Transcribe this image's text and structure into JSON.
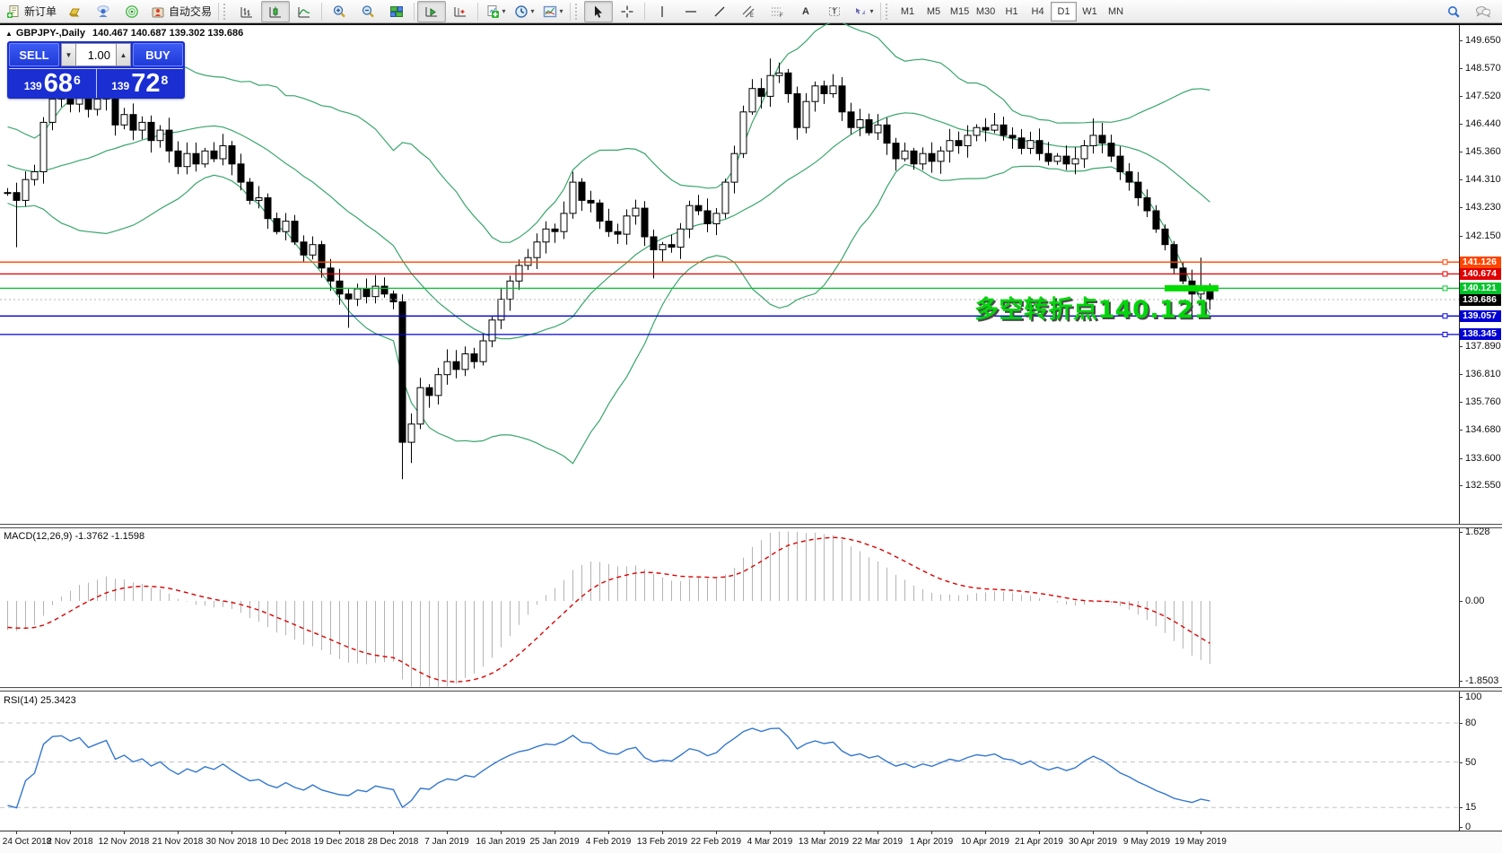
{
  "toolbar": {
    "new_order_label": "新订单",
    "auto_trading_label": "自动交易",
    "caret_glyph": "▾",
    "timeframes": [
      "M1",
      "M5",
      "M15",
      "M30",
      "H1",
      "H4",
      "D1",
      "W1",
      "MN"
    ],
    "active_timeframe": "D1",
    "text_tool_label": "A",
    "label_tool_label": "T"
  },
  "chart_header": {
    "expand_glyph": "▲",
    "symbol_title": "GBPJPY-,Daily",
    "ohlc_text": "140.467 140.687 139.302 139.686"
  },
  "trade_panel": {
    "sell_label": "SELL",
    "buy_label": "BUY",
    "volume": "1.00",
    "spinner_down_glyph": "▼",
    "spinner_up_glyph": "▲",
    "sell_price": {
      "prefix": "139",
      "big": "68",
      "sup": "6"
    },
    "buy_price": {
      "prefix": "139",
      "big": "72",
      "sup": "8"
    }
  },
  "annotation": {
    "text": "多空转折点140.121",
    "color": "#00d60a"
  },
  "indicator_labels": {
    "macd": "MACD(12,26,9) -1.3762 -1.1598",
    "rsi": "RSI(14) 25.3423"
  },
  "chart_data": {
    "type": "candlestick",
    "symbol": "GBPJPY-",
    "timeframe": "Daily",
    "title_ohlc": {
      "open": 140.467,
      "high": 140.687,
      "low": 139.302,
      "close": 139.686
    },
    "price_axis_ticks": [
      149.65,
      148.57,
      147.52,
      146.44,
      145.36,
      144.31,
      143.23,
      142.15,
      137.89,
      136.81,
      135.76,
      134.68,
      133.6,
      132.55
    ],
    "x_tick_labels": [
      "24 Oct 2018",
      "2 Nov 2018",
      "12 Nov 2018",
      "21 Nov 2018",
      "30 Nov 2018",
      "10 Dec 2018",
      "19 Dec 2018",
      "28 Dec 2018",
      "7 Jan 2019",
      "16 Jan 2019",
      "25 Jan 2019",
      "4 Feb 2019",
      "13 Feb 2019",
      "22 Feb 2019",
      "4 Mar 2019",
      "13 Mar 2019",
      "22 Mar 2019",
      "1 Apr 2019",
      "10 Apr 2019",
      "21 Apr 2019",
      "30 Apr 2019",
      "9 May 2019",
      "19 May 2019"
    ],
    "closes": [
      143.8,
      143.5,
      144.3,
      144.6,
      146.5,
      147.4,
      147.5,
      147.2,
      147.6,
      147.0,
      147.4,
      147.8,
      146.4,
      146.8,
      146.2,
      146.5,
      145.8,
      146.2,
      145.4,
      144.8,
      145.3,
      144.9,
      145.4,
      145.1,
      145.6,
      144.9,
      144.2,
      143.5,
      143.6,
      142.8,
      142.3,
      142.7,
      141.9,
      141.4,
      141.8,
      140.9,
      140.4,
      139.9,
      139.7,
      140.1,
      139.8,
      140.2,
      139.9,
      139.6,
      134.2,
      134.9,
      136.3,
      136.0,
      136.8,
      137.3,
      137.0,
      137.6,
      137.3,
      138.1,
      138.9,
      139.7,
      140.4,
      141.0,
      141.3,
      141.9,
      142.4,
      142.3,
      143.0,
      144.2,
      143.5,
      143.4,
      142.7,
      142.3,
      142.2,
      142.9,
      143.2,
      142.1,
      141.6,
      141.8,
      141.7,
      142.4,
      143.3,
      143.1,
      142.6,
      143.0,
      144.2,
      145.3,
      146.9,
      147.8,
      147.5,
      148.3,
      148.4,
      147.6,
      146.3,
      147.3,
      147.9,
      147.6,
      147.9,
      146.9,
      146.3,
      146.6,
      146.1,
      146.4,
      145.7,
      145.1,
      145.4,
      144.9,
      145.3,
      145.0,
      145.4,
      145.8,
      145.6,
      146.0,
      146.3,
      146.2,
      146.4,
      146.0,
      145.9,
      145.5,
      145.8,
      145.3,
      145.0,
      145.2,
      144.9,
      145.1,
      145.6,
      146.0,
      145.7,
      145.2,
      144.6,
      144.2,
      143.6,
      143.1,
      142.4,
      141.8,
      140.9,
      140.4,
      139.9,
      140.1,
      139.686
    ],
    "wick_overrides": {
      "1": {
        "low": 141.7
      },
      "6": {
        "high": 148.15
      },
      "38": {
        "low": 138.6
      },
      "44": {
        "low": 132.78
      },
      "45": {
        "low": 133.4
      },
      "63": {
        "high": 144.6
      },
      "72": {
        "low": 140.5
      },
      "85": {
        "high": 148.95
      },
      "86": {
        "high": 148.8
      },
      "121": {
        "high": 146.65
      },
      "132": {
        "low": 139.05
      },
      "133": {
        "high": 141.3
      },
      "134": {
        "low": 139.3
      }
    },
    "bollinger": {
      "period": 20,
      "deviation": 2,
      "color": "#3aa66c"
    },
    "levels": [
      {
        "price": 141.126,
        "label": "141.126",
        "color": "#ff4500"
      },
      {
        "price": 140.674,
        "label": "140.674",
        "color": "#e00000"
      },
      {
        "price": 140.121,
        "label": "140.121",
        "color": "#00c42a"
      },
      {
        "price": 139.057,
        "label": "139.057",
        "color": "#0000d2"
      },
      {
        "price": 138.345,
        "label": "138.345",
        "color": "#0000d2"
      }
    ],
    "current_price": {
      "price": 139.686,
      "label": "139.686",
      "line_color": "#b4b4b4",
      "tag_bg": "#000000"
    },
    "highlight_segment": {
      "price": 140.121,
      "from_candle": 129,
      "to_candle": 135,
      "color": "#00dc00",
      "thickness": 7
    },
    "macd": {
      "name": "MACD",
      "params": "12,26,9",
      "value_main": -1.3762,
      "value_signal": -1.1598,
      "axis_ticks": [
        "1.628",
        "0.00",
        "-1.8503"
      ],
      "axis_values": [
        1.628,
        0,
        -1.8503
      ],
      "histogram_color": "#b4b4b4",
      "signal_color": "#dd0000"
    },
    "rsi": {
      "name": "RSI",
      "params": "14",
      "value": 25.3423,
      "axis_ticks": [
        "100",
        "80",
        "50",
        "15",
        "0"
      ],
      "axis_values": [
        100,
        80,
        50,
        15,
        0
      ],
      "level_lines": [
        80,
        50,
        15
      ],
      "line_color": "#3377d0"
    }
  }
}
